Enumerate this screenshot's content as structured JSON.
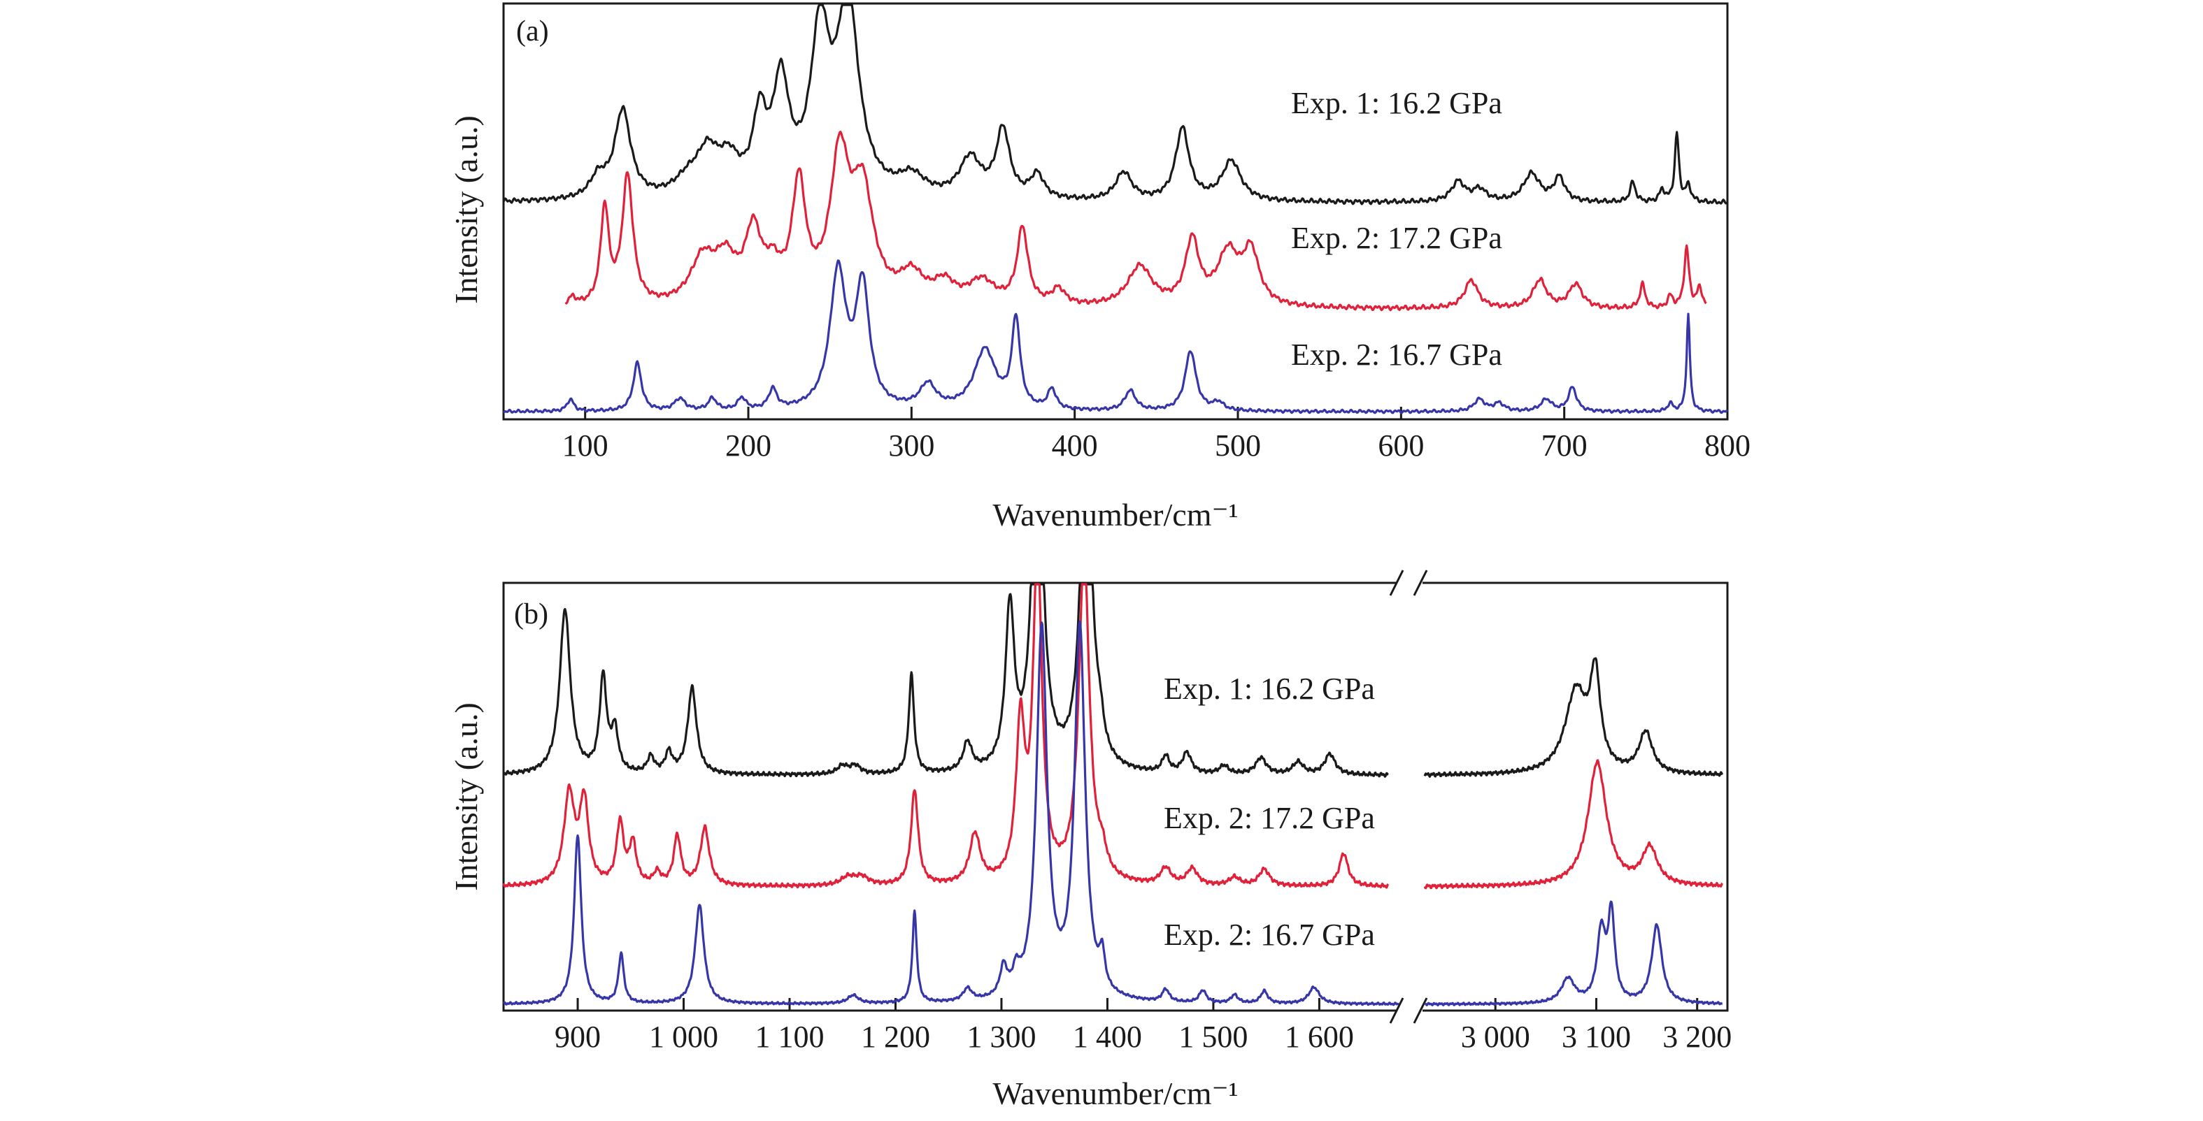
{
  "chart_data": [
    {
      "type": "line",
      "panel_label": "(a)",
      "xlabel": "Wavenumber/cm⁻¹",
      "ylabel": "Intensity (a.u.)",
      "xlim": [
        50,
        800
      ],
      "ylim": [
        0,
        1
      ],
      "ticks": [
        {
          "value": 100,
          "label": "100"
        },
        {
          "value": 200,
          "label": "200"
        },
        {
          "value": 300,
          "label": "300"
        },
        {
          "value": 400,
          "label": "400"
        },
        {
          "value": 500,
          "label": "500"
        },
        {
          "value": 600,
          "label": "600"
        },
        {
          "value": 700,
          "label": "700"
        },
        {
          "value": 800,
          "label": "800"
        }
      ],
      "series": [
        {
          "name": "Exp. 1: 16.2 GPa",
          "color": "#1a1a1a",
          "baseline": 0.53,
          "noise": 0.006,
          "x_range": [
            50,
            800
          ],
          "peaks": [
            [
              108,
              0.05,
              6
            ],
            [
              123,
              0.22,
              6
            ],
            [
              163,
              0.04,
              10
            ],
            [
              175,
              0.1,
              8
            ],
            [
              188,
              0.08,
              8
            ],
            [
              207,
              0.18,
              5
            ],
            [
              220,
              0.27,
              6
            ],
            [
              244,
              0.39,
              7
            ],
            [
              261,
              0.48,
              8
            ],
            [
              300,
              0.05,
              10
            ],
            [
              336,
              0.1,
              8
            ],
            [
              356,
              0.17,
              5
            ],
            [
              377,
              0.06,
              5
            ],
            [
              430,
              0.07,
              6
            ],
            [
              466,
              0.18,
              5
            ],
            [
              496,
              0.1,
              7
            ],
            [
              635,
              0.05,
              5
            ],
            [
              648,
              0.03,
              5
            ],
            [
              680,
              0.07,
              6
            ],
            [
              697,
              0.06,
              4
            ],
            [
              742,
              0.05,
              2
            ],
            [
              760,
              0.03,
              2
            ],
            [
              769,
              0.17,
              1.5
            ],
            [
              776,
              0.04,
              2
            ]
          ]
        },
        {
          "name": "Exp. 2: 17.2 GPa",
          "color": "#e0213a",
          "baseline": 0.265,
          "noise": 0.006,
          "x_range": [
            88,
            787
          ],
          "peaks": [
            [
              92,
              0.02,
              3
            ],
            [
              112,
              0.24,
              3
            ],
            [
              126,
              0.32,
              4
            ],
            [
              172,
              0.11,
              9
            ],
            [
              186,
              0.1,
              8
            ],
            [
              203,
              0.17,
              6
            ],
            [
              215,
              0.07,
              6
            ],
            [
              231,
              0.29,
              5
            ],
            [
              256,
              0.35,
              7
            ],
            [
              270,
              0.27,
              8
            ],
            [
              300,
              0.07,
              9
            ],
            [
              320,
              0.05,
              8
            ],
            [
              343,
              0.06,
              10
            ],
            [
              368,
              0.19,
              4
            ],
            [
              390,
              0.04,
              5
            ],
            [
              440,
              0.1,
              9
            ],
            [
              472,
              0.16,
              5
            ],
            [
              494,
              0.13,
              8
            ],
            [
              508,
              0.13,
              6
            ],
            [
              643,
              0.07,
              5
            ],
            [
              685,
              0.07,
              5
            ],
            [
              707,
              0.06,
              5
            ],
            [
              748,
              0.06,
              2
            ],
            [
              765,
              0.03,
              2
            ],
            [
              775,
              0.15,
              1.8
            ],
            [
              783,
              0.05,
              2
            ]
          ]
        },
        {
          "name": "Exp. 2: 16.7 GPa",
          "color": "#3636a8",
          "baseline": 0.01,
          "noise": 0.004,
          "x_range": [
            50,
            800
          ],
          "peaks": [
            [
              91,
              0.03,
              2.5
            ],
            [
              132,
              0.12,
              3
            ],
            [
              158,
              0.03,
              4
            ],
            [
              178,
              0.03,
              3
            ],
            [
              196,
              0.03,
              3
            ],
            [
              215,
              0.05,
              3
            ],
            [
              255,
              0.34,
              6
            ],
            [
              270,
              0.3,
              5
            ],
            [
              310,
              0.06,
              6
            ],
            [
              345,
              0.15,
              8
            ],
            [
              364,
              0.22,
              3
            ],
            [
              386,
              0.05,
              3
            ],
            [
              434,
              0.05,
              4
            ],
            [
              471,
              0.15,
              4
            ],
            [
              488,
              0.02,
              4
            ],
            [
              648,
              0.03,
              4
            ],
            [
              660,
              0.02,
              4
            ],
            [
              689,
              0.03,
              4
            ],
            [
              705,
              0.06,
              3
            ],
            [
              765,
              0.02,
              2
            ],
            [
              776,
              0.24,
              1.2
            ]
          ]
        }
      ],
      "labels": [
        "Exp. 1: 16.2 GPa",
        "Exp. 2: 17.2 GPa",
        "Exp. 2: 16.7 GPa"
      ]
    },
    {
      "type": "line",
      "panel_label": "(b)",
      "xlabel": "Wavenumber/cm⁻¹",
      "ylabel": "Intensity (a.u.)",
      "broken_axis": true,
      "segments": [
        {
          "xlim": [
            830,
            1675
          ]
        },
        {
          "xlim": [
            2925,
            3230
          ]
        }
      ],
      "ylim": [
        0,
        1
      ],
      "ticks": [
        {
          "value": 900,
          "label": "900"
        },
        {
          "value": 1000,
          "label": "1 000"
        },
        {
          "value": 1100,
          "label": "1 100"
        },
        {
          "value": 1200,
          "label": "1 200"
        },
        {
          "value": 1300,
          "label": "1 300"
        },
        {
          "value": 1400,
          "label": "1 400"
        },
        {
          "value": 1500,
          "label": "1 500"
        },
        {
          "value": 1600,
          "label": "1 600"
        },
        {
          "value": 3000,
          "label": "3 000"
        },
        {
          "value": 3100,
          "label": "3 100"
        },
        {
          "value": 3200,
          "label": "3 200"
        }
      ],
      "series": [
        {
          "name": "Exp. 1: 16.2 GPa",
          "color": "#1a1a1a",
          "baseline": 0.56,
          "noise": 0.005,
          "x_ranges": [
            [
              830,
              1665
            ],
            [
              2930,
              3225
            ]
          ],
          "peaks": [
            [
              888,
              0.4,
              6
            ],
            [
              924,
              0.23,
              4
            ],
            [
              935,
              0.1,
              4
            ],
            [
              969,
              0.04,
              4
            ],
            [
              986,
              0.05,
              4
            ],
            [
              1008,
              0.21,
              5
            ],
            [
              1150,
              0.02,
              6
            ],
            [
              1162,
              0.02,
              6
            ],
            [
              1215,
              0.24,
              3
            ],
            [
              1268,
              0.07,
              5
            ],
            [
              1308,
              0.39,
              5
            ],
            [
              1334,
              0.9,
              6
            ],
            [
              1380,
              0.9,
              6
            ],
            [
              1393,
              0.06,
              4
            ],
            [
              1455,
              0.04,
              4
            ],
            [
              1475,
              0.05,
              5
            ],
            [
              1510,
              0.02,
              5
            ],
            [
              1545,
              0.04,
              6
            ],
            [
              1580,
              0.03,
              6
            ],
            [
              1610,
              0.05,
              6
            ],
            [
              3080,
              0.2,
              13
            ],
            [
              3099,
              0.22,
              6
            ],
            [
              3149,
              0.1,
              8
            ]
          ]
        },
        {
          "name": "Exp. 2: 17.2 GPa",
          "color": "#e0213a",
          "baseline": 0.29,
          "noise": 0.005,
          "x_ranges": [
            [
              830,
              1665
            ],
            [
              2930,
              3225
            ]
          ],
          "peaks": [
            [
              892,
              0.22,
              6
            ],
            [
              906,
              0.2,
              5
            ],
            [
              940,
              0.15,
              4
            ],
            [
              952,
              0.1,
              4
            ],
            [
              975,
              0.03,
              4
            ],
            [
              994,
              0.12,
              4
            ],
            [
              1020,
              0.14,
              5
            ],
            [
              1155,
              0.02,
              8
            ],
            [
              1168,
              0.02,
              8
            ],
            [
              1218,
              0.23,
              4
            ],
            [
              1275,
              0.12,
              6
            ],
            [
              1318,
              0.37,
              5
            ],
            [
              1334,
              0.8,
              5
            ],
            [
              1378,
              0.8,
              6
            ],
            [
              1395,
              0.05,
              5
            ],
            [
              1455,
              0.04,
              6
            ],
            [
              1480,
              0.04,
              6
            ],
            [
              1520,
              0.02,
              6
            ],
            [
              1548,
              0.04,
              6
            ],
            [
              1623,
              0.08,
              5
            ],
            [
              3101,
              0.3,
              11
            ],
            [
              3153,
              0.09,
              9
            ]
          ]
        },
        {
          "name": "Exp. 2: 16.7 GPa",
          "color": "#3636a8",
          "baseline": 0.005,
          "noise": 0.003,
          "x_ranges": [
            [
              830,
              1675
            ],
            [
              2930,
              3225
            ]
          ],
          "peaks": [
            [
              900,
              0.41,
              4
            ],
            [
              941,
              0.12,
              3
            ],
            [
              1015,
              0.24,
              5
            ],
            [
              1160,
              0.02,
              6
            ],
            [
              1218,
              0.22,
              2.5
            ],
            [
              1268,
              0.03,
              5
            ],
            [
              1302,
              0.07,
              4
            ],
            [
              1314,
              0.05,
              4
            ],
            [
              1338,
              0.9,
              6
            ],
            [
              1374,
              0.9,
              6
            ],
            [
              1395,
              0.08,
              3
            ],
            [
              1455,
              0.03,
              4
            ],
            [
              1490,
              0.03,
              4
            ],
            [
              1520,
              0.02,
              4
            ],
            [
              1548,
              0.03,
              4
            ],
            [
              1595,
              0.04,
              6
            ],
            [
              3072,
              0.06,
              8
            ],
            [
              3105,
              0.17,
              5
            ],
            [
              3115,
              0.21,
              4
            ],
            [
              3160,
              0.19,
              6
            ]
          ]
        }
      ],
      "labels": [
        "Exp. 1: 16.2 GPa",
        "Exp. 2: 17.2 GPa",
        "Exp. 2: 16.7 GPa"
      ]
    }
  ]
}
